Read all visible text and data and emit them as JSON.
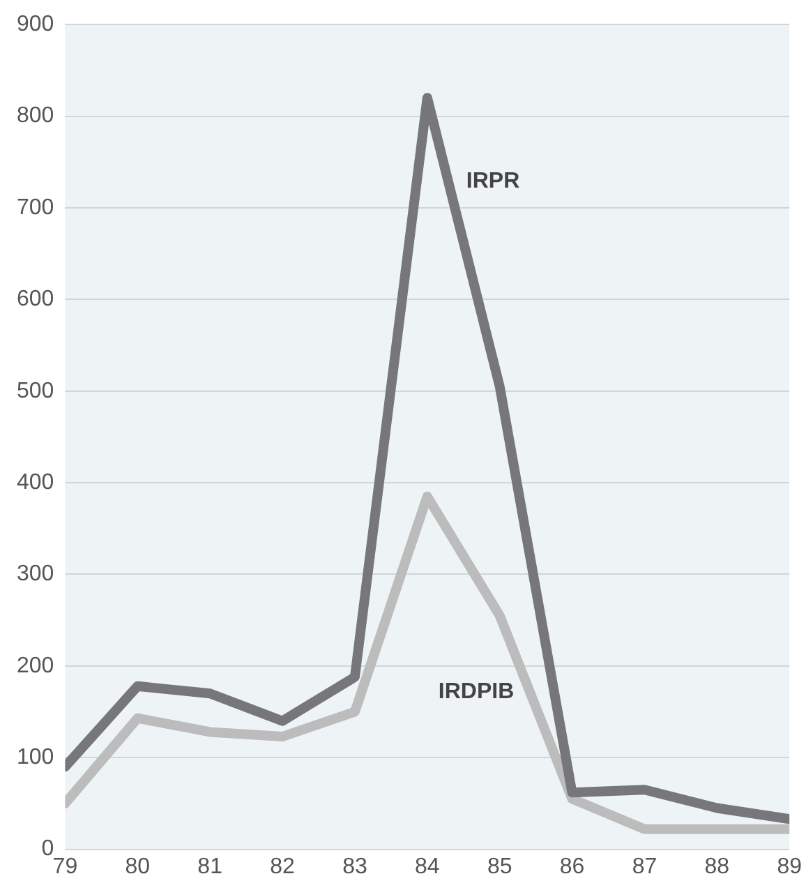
{
  "chart_data": {
    "type": "line",
    "x": [
      79,
      80,
      81,
      82,
      83,
      84,
      85,
      86,
      87,
      88,
      89
    ],
    "series": [
      {
        "name": "IRPR",
        "color": "#77777b",
        "values": [
          90,
          178,
          170,
          140,
          188,
          820,
          505,
          62,
          65,
          45,
          33
        ]
      },
      {
        "name": "IRDPIB",
        "color": "#bcbcbc",
        "values": [
          50,
          143,
          128,
          123,
          150,
          385,
          255,
          55,
          22,
          22,
          22
        ]
      }
    ],
    "xlim": [
      79,
      89
    ],
    "xticks": [
      79,
      80,
      81,
      82,
      83,
      84,
      85,
      86,
      87,
      88,
      89
    ],
    "ylim": [
      0,
      900
    ],
    "yticks": [
      0,
      100,
      200,
      300,
      400,
      500,
      600,
      700,
      800,
      900
    ],
    "grid": "y",
    "legend": false,
    "marker": "none",
    "line_style": "solid"
  }
}
